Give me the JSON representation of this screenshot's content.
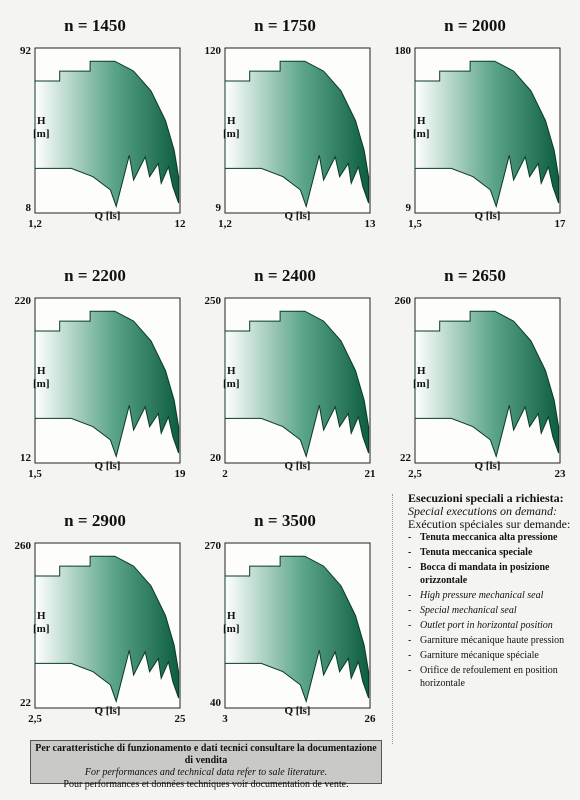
{
  "colors": {
    "fill_dark": "#0f5e40",
    "fill_light": "#ffffff",
    "stroke": "#0a3a28",
    "frame": "#222222",
    "footer_bg": "#c9c9c7"
  },
  "chart_data": [
    {
      "type": "area",
      "title": "n = 1450",
      "xlabel": "Q [ls]",
      "ylabel": "H [m]",
      "xlim": [
        1.2,
        12
      ],
      "ylim": [
        8,
        92
      ],
      "x_ticks": [
        "1,2",
        "12"
      ],
      "y_ticks": [
        "92",
        "8"
      ],
      "log_scale": true,
      "grid": false
    },
    {
      "type": "area",
      "title": "n = 1750",
      "xlabel": "Q [ls]",
      "ylabel": "H [m]",
      "xlim": [
        1.2,
        13
      ],
      "ylim": [
        9,
        120
      ],
      "x_ticks": [
        "1,2",
        "13"
      ],
      "y_ticks": [
        "120",
        "9"
      ],
      "log_scale": true,
      "grid": false
    },
    {
      "type": "area",
      "title": "n = 2000",
      "xlabel": "Q [ls]",
      "ylabel": "H [m]",
      "xlim": [
        1.5,
        17
      ],
      "ylim": [
        9,
        180
      ],
      "x_ticks": [
        "1,5",
        "17"
      ],
      "y_ticks": [
        "180",
        "9"
      ],
      "log_scale": true,
      "grid": false
    },
    {
      "type": "area",
      "title": "n = 2200",
      "xlabel": "Q [ls]",
      "ylabel": "H [m]",
      "xlim": [
        1.5,
        19
      ],
      "ylim": [
        12,
        220
      ],
      "x_ticks": [
        "1,5",
        "19"
      ],
      "y_ticks": [
        "220",
        "12"
      ],
      "log_scale": true,
      "grid": false
    },
    {
      "type": "area",
      "title": "n = 2400",
      "xlabel": "Q [ls]",
      "ylabel": "H [m]",
      "xlim": [
        2,
        21
      ],
      "ylim": [
        20,
        250
      ],
      "x_ticks": [
        "2",
        "21"
      ],
      "y_ticks": [
        "250",
        "20"
      ],
      "log_scale": true,
      "grid": false
    },
    {
      "type": "area",
      "title": "n = 2650",
      "xlabel": "Q [ls]",
      "ylabel": "H [m]",
      "xlim": [
        2.5,
        23
      ],
      "ylim": [
        22,
        260
      ],
      "x_ticks": [
        "2,5",
        "23"
      ],
      "y_ticks": [
        "260",
        "22"
      ],
      "log_scale": true,
      "grid": false
    },
    {
      "type": "area",
      "title": "n = 2900",
      "xlabel": "Q [ls]",
      "ylabel": "H [m]",
      "xlim": [
        2.5,
        25
      ],
      "ylim": [
        22,
        260
      ],
      "x_ticks": [
        "2,5",
        "25"
      ],
      "y_ticks": [
        "260",
        "22"
      ],
      "log_scale": true,
      "grid": false
    },
    {
      "type": "area",
      "title": "n = 3500",
      "xlabel": "Q [ls]",
      "ylabel": "H [m]",
      "xlim": [
        3,
        26
      ],
      "ylim": [
        40,
        270
      ],
      "x_ticks": [
        "3",
        "26"
      ],
      "y_ticks": [
        "270",
        "40"
      ],
      "log_scale": true,
      "grid": false
    }
  ],
  "notes": {
    "heading": "Esecuzioni speciali a richiesta:",
    "sub_en": "Special executions on demand:",
    "sub_fr": "Exécution spéciales sur demande:",
    "items_it": [
      "Tenuta meccanica alta pressione",
      "Tenuta meccanica speciale",
      "Bocca di mandata in posizione orizzontale"
    ],
    "items_en": [
      "High pressure mechanical seal",
      "Special mechanical seal",
      "Outlet port in horizontal position"
    ],
    "items_fr": [
      "Garniture mécanique haute pression",
      "Garniture mécanique spéciale",
      "Orifice de refoulement en position horizontale"
    ]
  },
  "footer": {
    "line_it": "Per caratteristiche di funzionamento e dati tecnici consultare la documentazione di vendita",
    "line_en": "For performances and technical data refer to sale literature.",
    "line_fr": "Pour performances et données techniques voir documentation de vente."
  }
}
